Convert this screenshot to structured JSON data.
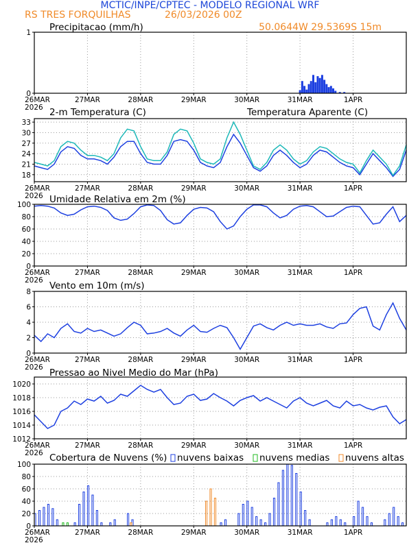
{
  "header": {
    "title": "MCTIC/INPE/CPTEC - MODELO REGIONAL WRF",
    "location": "RS TRES FORQUILHAS",
    "run": "26/03/2026 00Z",
    "coords": "50.0644W 29.5369S 15m",
    "title_color": "#1c46d8",
    "accent_color": "#f08a28"
  },
  "time_axis": {
    "labels": [
      "26MAR",
      "27MAR",
      "28MAR",
      "29MAR",
      "30MAR",
      "31MAR",
      "1APR"
    ],
    "year_label": "2026",
    "hours_total": 168
  },
  "colors": {
    "blue": "#1c3fe0",
    "cyan": "#1cb8b8",
    "green": "#22bb22",
    "orange": "#f08a28",
    "black": "#000000"
  },
  "chart_data": [
    {
      "id": "precip",
      "type": "bar",
      "title": "Precipitacao (mm/h)",
      "ylim": [
        0,
        1
      ],
      "yticks": [
        0,
        1
      ],
      "grid": true,
      "x_hours": [
        120,
        121,
        122,
        123,
        124,
        125,
        126,
        127,
        128,
        129,
        130,
        131,
        132,
        133,
        134,
        135,
        136,
        138,
        140
      ],
      "series": [
        {
          "name": "Precipitacao",
          "color": "#1c3fe0",
          "values": [
            0.05,
            0.2,
            0.12,
            0.06,
            0.15,
            0.2,
            0.3,
            0.18,
            0.28,
            0.25,
            0.3,
            0.22,
            0.15,
            0.1,
            0.12,
            0.08,
            0.04,
            0.02,
            0.02
          ]
        }
      ]
    },
    {
      "id": "temp",
      "type": "line",
      "title": "2-m Temperatura (C)",
      "legend": "Temperatura Aparente (C)",
      "ylim": [
        16,
        34
      ],
      "yticks": [
        18,
        21,
        24,
        27,
        30,
        33
      ],
      "grid": true,
      "x_hours": [
        0,
        3,
        6,
        9,
        12,
        15,
        18,
        21,
        24,
        27,
        30,
        33,
        36,
        39,
        42,
        45,
        48,
        51,
        54,
        57,
        60,
        63,
        66,
        69,
        72,
        75,
        78,
        81,
        84,
        87,
        90,
        93,
        96,
        99,
        102,
        105,
        108,
        111,
        114,
        117,
        120,
        123,
        126,
        129,
        132,
        135,
        138,
        141,
        144,
        147,
        150,
        153,
        156,
        159,
        162,
        165,
        168
      ],
      "series": [
        {
          "name": "2-m Temperatura",
          "color": "#1c3fe0",
          "values": [
            20.5,
            20,
            19.5,
            21,
            24.5,
            26,
            25.5,
            23.5,
            22.5,
            22.5,
            22,
            21,
            23,
            26,
            27.5,
            27.5,
            24,
            21.5,
            21,
            21,
            23.5,
            27.5,
            28,
            27.5,
            25,
            21.5,
            20.5,
            20,
            21.5,
            26,
            29.5,
            27,
            23.5,
            20,
            19,
            20.5,
            23.5,
            25,
            23.5,
            21.5,
            20,
            21,
            23.5,
            25,
            24.5,
            23,
            21.5,
            20.5,
            20,
            18,
            21,
            24,
            22,
            20,
            17.5,
            19.5,
            25
          ]
        },
        {
          "name": "Temperatura Aparente",
          "color": "#1cb8b8",
          "values": [
            21.5,
            21,
            20.5,
            22,
            26,
            27.5,
            27,
            25,
            23.5,
            23.5,
            23,
            22,
            24,
            28.5,
            31,
            30.5,
            26,
            22.5,
            22,
            22,
            24.5,
            29.5,
            31,
            30.5,
            27,
            22.5,
            21.5,
            21,
            22.5,
            28.5,
            33,
            29.5,
            25,
            20.5,
            19.5,
            21.5,
            25,
            26.5,
            25,
            22.5,
            21,
            22,
            24.5,
            26,
            25.5,
            24,
            22.5,
            21.5,
            21,
            18.5,
            22,
            25,
            23,
            21,
            17.8,
            20.5,
            26.5
          ]
        }
      ]
    },
    {
      "id": "rh",
      "type": "line",
      "title": "Umidade Relativa em 2m (%)",
      "ylim": [
        0,
        100
      ],
      "yticks": [
        0,
        20,
        40,
        60,
        80,
        100
      ],
      "grid": true,
      "x_hours": [
        0,
        3,
        6,
        9,
        12,
        15,
        18,
        21,
        24,
        27,
        30,
        33,
        36,
        39,
        42,
        45,
        48,
        51,
        54,
        57,
        60,
        63,
        66,
        69,
        72,
        75,
        78,
        81,
        84,
        87,
        90,
        93,
        96,
        99,
        102,
        105,
        108,
        111,
        114,
        117,
        120,
        123,
        126,
        129,
        132,
        135,
        138,
        141,
        144,
        147,
        150,
        153,
        156,
        159,
        162,
        165,
        168
      ],
      "series": [
        {
          "name": "Umidade Relativa",
          "color": "#1c3fe0",
          "values": [
            97,
            98,
            97,
            94,
            86,
            82,
            84,
            91,
            96,
            97,
            95,
            90,
            78,
            74,
            76,
            85,
            96,
            99,
            98,
            90,
            75,
            68,
            70,
            82,
            92,
            95,
            94,
            88,
            72,
            60,
            65,
            80,
            92,
            99,
            99,
            96,
            86,
            78,
            82,
            92,
            97,
            98,
            96,
            88,
            80,
            81,
            88,
            95,
            97,
            96,
            82,
            68,
            70,
            84,
            96,
            72,
            82
          ]
        }
      ]
    },
    {
      "id": "wind",
      "type": "line",
      "title": "Vento em 10m (m/s)",
      "ylim": [
        0,
        8
      ],
      "yticks": [
        0,
        2,
        4,
        6,
        8
      ],
      "grid": true,
      "x_hours": [
        0,
        3,
        6,
        9,
        12,
        15,
        18,
        21,
        24,
        27,
        30,
        33,
        36,
        39,
        42,
        45,
        48,
        51,
        54,
        57,
        60,
        63,
        66,
        69,
        72,
        75,
        78,
        81,
        84,
        87,
        90,
        93,
        96,
        99,
        102,
        105,
        108,
        111,
        114,
        117,
        120,
        123,
        126,
        129,
        132,
        135,
        138,
        141,
        144,
        147,
        150,
        153,
        156,
        159,
        162,
        165,
        168
      ],
      "series": [
        {
          "name": "Vento em 10m",
          "color": "#1c3fe0",
          "values": [
            2.3,
            1.5,
            2.5,
            2,
            3.2,
            3.8,
            2.8,
            2.6,
            3.2,
            2.8,
            3,
            2.6,
            2.2,
            2.5,
            3.3,
            4,
            3.6,
            2.5,
            2.6,
            2.8,
            3.2,
            2.6,
            2.2,
            3,
            3.6,
            2.8,
            2.7,
            3.2,
            3.6,
            3.3,
            2,
            0.5,
            2,
            3.5,
            3.8,
            3.3,
            3,
            3.6,
            4,
            3.6,
            3.8,
            3.6,
            3.6,
            3.8,
            3.4,
            3.2,
            3.8,
            3.9,
            5,
            5.8,
            6,
            3.5,
            3,
            5,
            6.5,
            4.5,
            3
          ]
        }
      ]
    },
    {
      "id": "mslp",
      "type": "line",
      "title": "Pressao ao Nivel Medio do Mar (hPa)",
      "ylim": [
        1012,
        1021
      ],
      "yticks": [
        1012,
        1014,
        1016,
        1018,
        1020
      ],
      "grid": true,
      "x_hours": [
        0,
        3,
        6,
        9,
        12,
        15,
        18,
        21,
        24,
        27,
        30,
        33,
        36,
        39,
        42,
        45,
        48,
        51,
        54,
        57,
        60,
        63,
        66,
        69,
        72,
        75,
        78,
        81,
        84,
        87,
        90,
        93,
        96,
        99,
        102,
        105,
        108,
        111,
        114,
        117,
        120,
        123,
        126,
        129,
        132,
        135,
        138,
        141,
        144,
        147,
        150,
        153,
        156,
        159,
        162,
        165,
        168
      ],
      "series": [
        {
          "name": "Pressao",
          "color": "#1c3fe0",
          "values": [
            1015.5,
            1014.5,
            1013.5,
            1014,
            1016,
            1016.5,
            1017.5,
            1017,
            1017.8,
            1017.5,
            1018.2,
            1017.2,
            1017.6,
            1018.5,
            1018.2,
            1019,
            1019.8,
            1019.2,
            1018.8,
            1019.2,
            1018,
            1017,
            1017.2,
            1018.2,
            1018.5,
            1017.6,
            1017.8,
            1018.6,
            1018,
            1017.5,
            1016.8,
            1017.6,
            1018,
            1018.3,
            1017.5,
            1018,
            1017.5,
            1017,
            1016.5,
            1017.5,
            1018,
            1017.2,
            1016.8,
            1017.2,
            1017.6,
            1016.8,
            1016.5,
            1017.5,
            1016.8,
            1017,
            1016.5,
            1016.2,
            1016.6,
            1016.8,
            1015.2,
            1014.2,
            1014.8
          ]
        }
      ]
    },
    {
      "id": "clouds",
      "type": "bar",
      "title": "Cobertura de Nuvens (%)",
      "ylim": [
        0,
        100
      ],
      "yticks": [
        0,
        20,
        40,
        60,
        80,
        100
      ],
      "grid": true,
      "x_hours": [
        0,
        2,
        4,
        6,
        8,
        10,
        12,
        14,
        16,
        18,
        20,
        22,
        24,
        26,
        28,
        30,
        32,
        34,
        36,
        38,
        40,
        42,
        44,
        46,
        48,
        50,
        52,
        54,
        56,
        58,
        60,
        62,
        64,
        66,
        68,
        70,
        72,
        74,
        76,
        78,
        80,
        82,
        84,
        86,
        88,
        90,
        92,
        94,
        96,
        98,
        100,
        102,
        104,
        106,
        108,
        110,
        112,
        114,
        116,
        118,
        120,
        122,
        124,
        126,
        128,
        130,
        132,
        134,
        136,
        138,
        140,
        142,
        144,
        146,
        148,
        150,
        152,
        154,
        156,
        158,
        160,
        162,
        164,
        166
      ],
      "series": [
        {
          "name": "nuvens baixas",
          "color": "#1c3fe0",
          "values": [
            20,
            25,
            30,
            35,
            28,
            10,
            0,
            0,
            0,
            5,
            35,
            55,
            65,
            50,
            25,
            5,
            0,
            5,
            10,
            0,
            0,
            20,
            10,
            0,
            0,
            0,
            0,
            0,
            0,
            0,
            0,
            0,
            0,
            0,
            0,
            0,
            0,
            0,
            0,
            0,
            0,
            0,
            5,
            10,
            0,
            0,
            20,
            35,
            40,
            30,
            15,
            10,
            5,
            20,
            45,
            70,
            90,
            100,
            98,
            85,
            55,
            25,
            10,
            0,
            0,
            0,
            5,
            10,
            15,
            10,
            5,
            0,
            15,
            40,
            30,
            15,
            5,
            0,
            0,
            10,
            20,
            30,
            15,
            5
          ]
        },
        {
          "name": "nuvens medias",
          "color": "#22bb22",
          "values": [
            0,
            0,
            0,
            0,
            0,
            0,
            5,
            5,
            0,
            0,
            0,
            0,
            0,
            0,
            0,
            0,
            0,
            0,
            0,
            0,
            0,
            0,
            0,
            0,
            0,
            0,
            0,
            0,
            0,
            0,
            0,
            0,
            0,
            0,
            0,
            0,
            0,
            0,
            0,
            0,
            0,
            0,
            0,
            0,
            0,
            0,
            0,
            0,
            0,
            0,
            0,
            0,
            0,
            0,
            0,
            0,
            0,
            0,
            0,
            0,
            0,
            0,
            0,
            0,
            0,
            0,
            0,
            0,
            0,
            0,
            0,
            0,
            0,
            0,
            0,
            0,
            0,
            0,
            0,
            0,
            0,
            0,
            0,
            0
          ]
        },
        {
          "name": "nuvens altas",
          "color": "#f08a28",
          "values": [
            0,
            0,
            0,
            0,
            0,
            0,
            0,
            0,
            0,
            0,
            0,
            0,
            0,
            0,
            0,
            0,
            0,
            0,
            0,
            0,
            0,
            5,
            0,
            0,
            0,
            0,
            0,
            0,
            0,
            0,
            0,
            0,
            0,
            0,
            0,
            0,
            0,
            0,
            40,
            60,
            45,
            0,
            0,
            0,
            0,
            0,
            0,
            0,
            0,
            0,
            0,
            0,
            0,
            0,
            0,
            0,
            0,
            0,
            0,
            0,
            0,
            0,
            0,
            0,
            0,
            0,
            0,
            0,
            0,
            0,
            0,
            0,
            0,
            0,
            0,
            0,
            0,
            0,
            0,
            0,
            0,
            0,
            0,
            0
          ]
        }
      ]
    }
  ]
}
